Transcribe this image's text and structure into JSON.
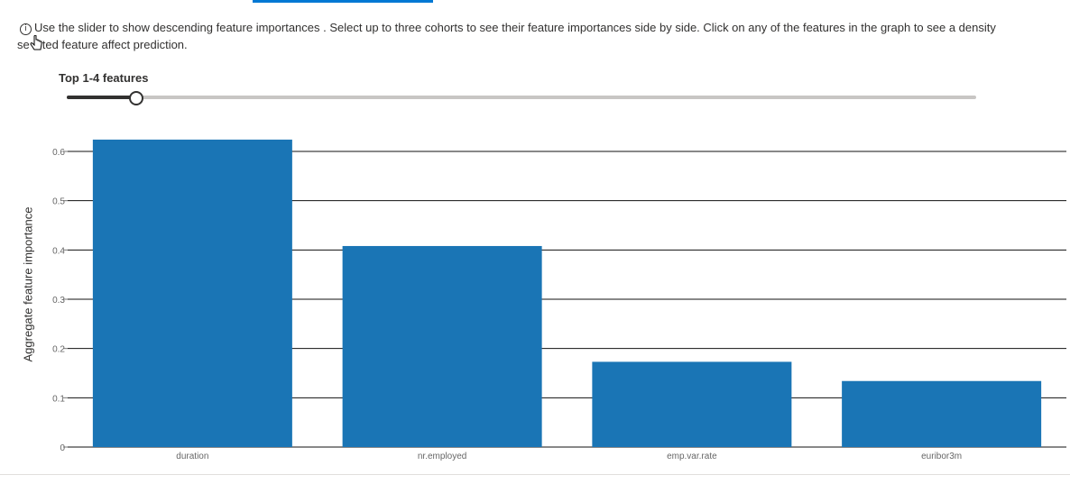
{
  "info": {
    "line1": "Use the slider to show descending feature importances . Select up to three cohorts to see their feature importances side by side. Click on any of the features in the graph to see a density",
    "line2_a": "se",
    "line2_b": "ted feature affect prediction.",
    "icon": "info-icon"
  },
  "slider": {
    "label": "Top 1-4 features",
    "value": 4
  },
  "chart_data": {
    "type": "bar",
    "ylabel": "Aggregate feature importance",
    "xlabel": "",
    "categories": [
      "duration",
      "nr.employed",
      "emp.var.rate",
      "euribor3m"
    ],
    "values": [
      0.624,
      0.408,
      0.173,
      0.134
    ],
    "ylim": [
      0,
      0.6
    ],
    "yticks": [
      "0",
      "0.1",
      "0.2",
      "0.3",
      "0.4",
      "0.5",
      "0.6"
    ],
    "bar_color": "#1a75b5",
    "grid": true
  }
}
